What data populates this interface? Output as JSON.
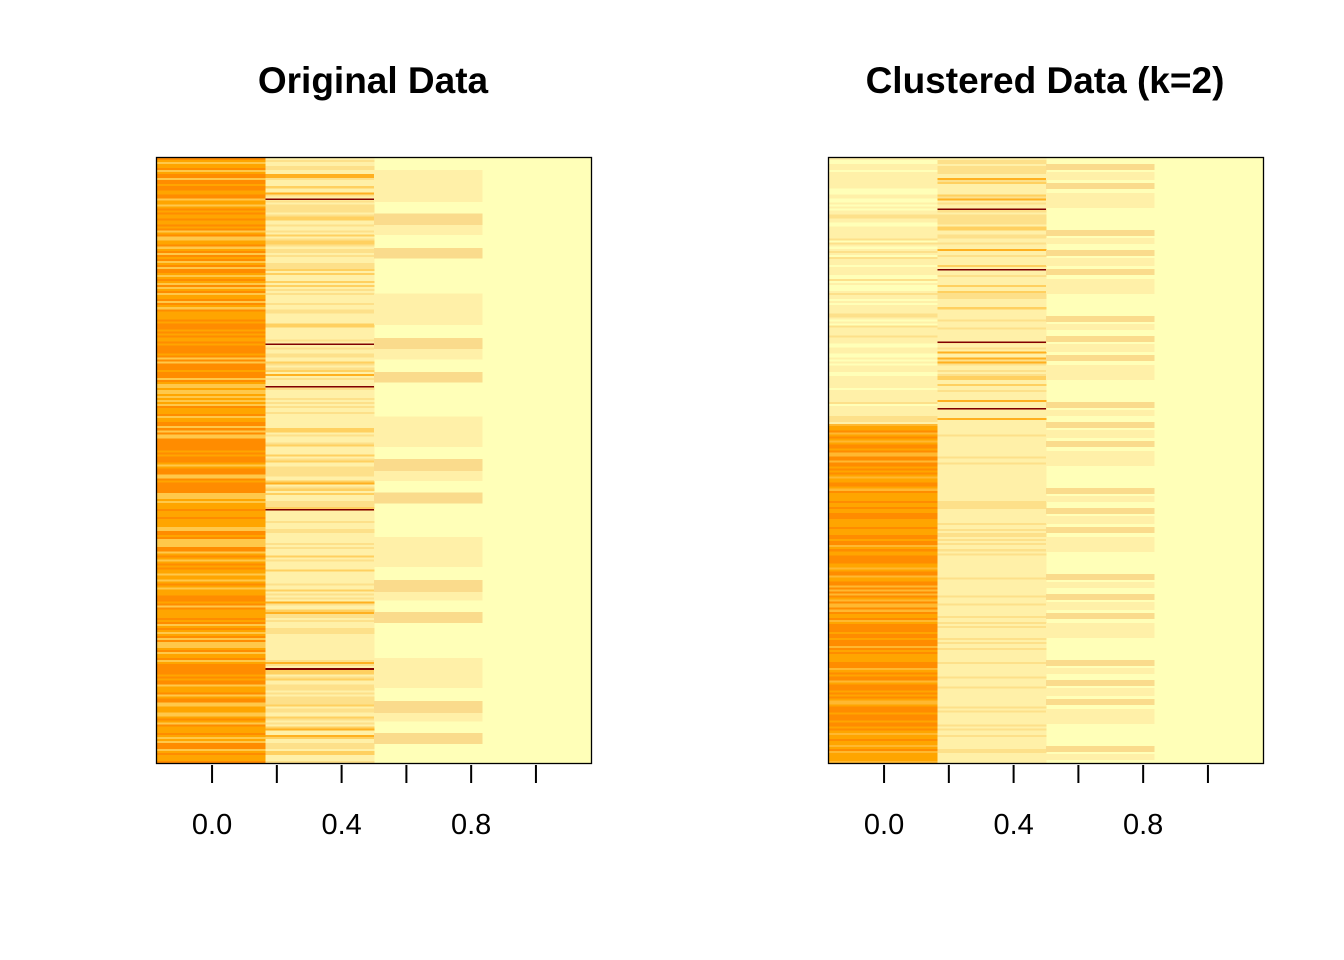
{
  "chart_data": [
    {
      "type": "heatmap",
      "title": "Original Data",
      "xlabel": "",
      "ylabel": "",
      "columns": 4,
      "x_ticks": [
        0.0,
        0.2,
        0.4,
        0.6,
        0.8,
        1.0
      ],
      "x_tick_labels": [
        "0.0",
        "0.4",
        "0.8"
      ],
      "xlim": [
        -0.17,
        1.17
      ],
      "colors": {
        "low": "#ff8c00",
        "mid_low": "#ffa500",
        "mid": "#fff0a8",
        "high": "#ffffb8",
        "peak": "#800000"
      },
      "rows": 300,
      "dark_bands_in_column_2": [
        20,
        92,
        113,
        174,
        253
      ],
      "column_3_band_pattern": "alternating blocks of pale and mid-yellow bands"
    },
    {
      "type": "heatmap",
      "title": "Clustered Data (k=2)",
      "xlabel": "",
      "ylabel": "",
      "columns": 4,
      "x_ticks": [
        0.0,
        0.2,
        0.4,
        0.6,
        0.8,
        1.0
      ],
      "x_tick_labels": [
        "0.0",
        "0.4",
        "0.8"
      ],
      "xlim": [
        -0.17,
        1.17
      ],
      "clusters": 2,
      "cluster_split_fraction": 0.44,
      "colors": {
        "low": "#ff8c00",
        "mid_low": "#ffa500",
        "mid": "#fff0a8",
        "high": "#ffffb8",
        "peak": "#800000"
      },
      "rows": 300
    }
  ]
}
